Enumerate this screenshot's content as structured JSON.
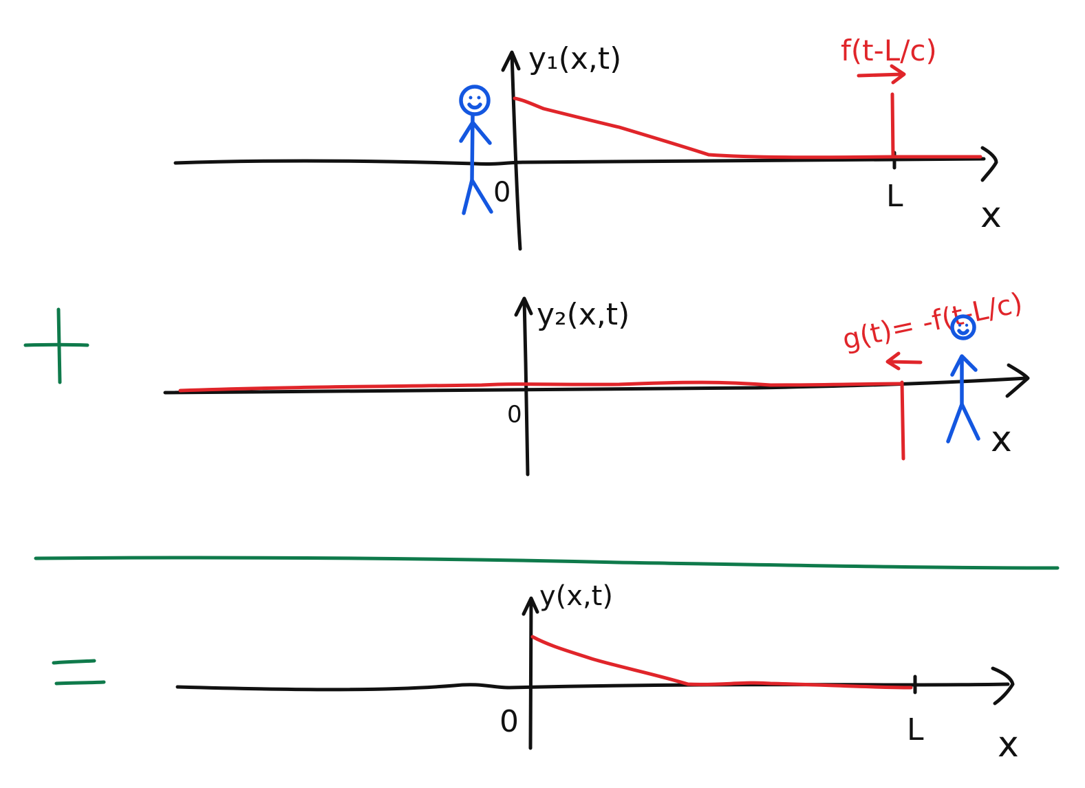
{
  "colors": {
    "axis": "#111111",
    "wave": "#e0252a",
    "person": "#1457e0",
    "operator": "#0f7a4b"
  },
  "panels": {
    "top": {
      "y_label": "y₁(x,t)",
      "origin_label": "0",
      "L_label": "L",
      "x_label": "x",
      "wave_label": "f(t-L/c)"
    },
    "middle": {
      "y_label": "y₂(x,t)",
      "origin_label": "0",
      "x_label": "x",
      "wave_label": "g(t)= -f(t-L/c)"
    },
    "bottom": {
      "y_label": "y(x,t)",
      "origin_label": "0",
      "L_label": "L",
      "x_label": "x"
    }
  },
  "operators": {
    "plus": "+",
    "equals": "="
  },
  "icons": [
    "stick-person-icon",
    "arrow-right-icon",
    "arrow-left-icon"
  ]
}
